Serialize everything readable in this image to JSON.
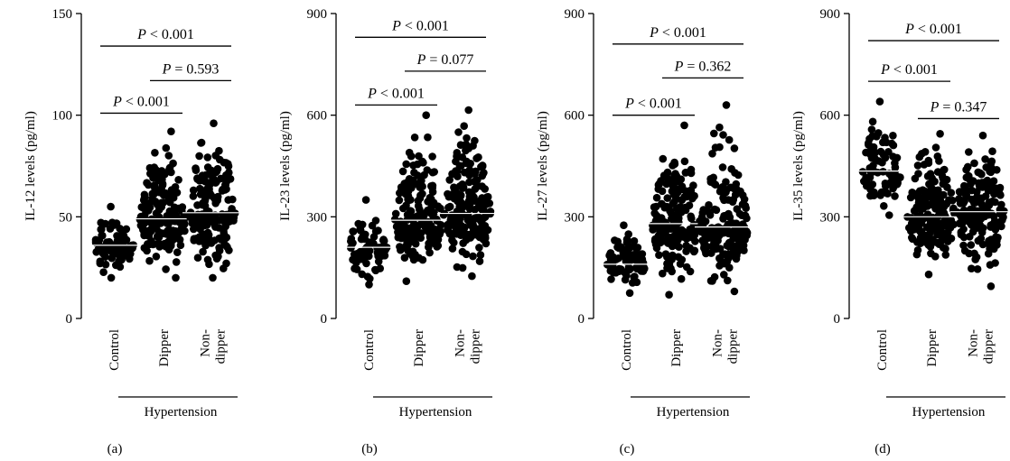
{
  "figure": {
    "group_label": "Hypertension",
    "panels": [
      "(a)",
      "(b)",
      "(c)",
      "(d)"
    ]
  },
  "chart_data": [
    {
      "type": "scatter",
      "panel_label": "(a)",
      "ylabel": "IL-12 levels (pg/ml)",
      "ylim": [
        0,
        150
      ],
      "yticks": [
        "0",
        "50",
        "100",
        "150"
      ],
      "categories": [
        "Control",
        "Dipper",
        "Non-dipper"
      ],
      "category_lines": [
        [
          "Control"
        ],
        [
          "Dipper"
        ],
        [
          "Non-",
          "dipper"
        ]
      ],
      "group_label": "Hypertension",
      "series": [
        {
          "category": "Control",
          "mean": 36,
          "min": 20,
          "max": 55,
          "n": 80
        },
        {
          "category": "Dipper",
          "mean": 49,
          "min": 20,
          "max": 92,
          "n": 180
        },
        {
          "category": "Non-dipper",
          "mean": 52,
          "min": 20,
          "max": 96,
          "n": 180
        }
      ],
      "comparisons": [
        {
          "from": "Control",
          "to": "Non-dipper",
          "prefix": "P",
          "text": " < 0.001",
          "y": 134
        },
        {
          "from": "Dipper",
          "to": "Non-dipper",
          "prefix": "P",
          "text": " = 0.593",
          "y": 117
        },
        {
          "from": "Control",
          "to": "Dipper",
          "prefix": "P",
          "text": " < 0.001",
          "y": 101
        }
      ]
    },
    {
      "type": "scatter",
      "panel_label": "(b)",
      "ylabel": "IL-23 levels (pg/ml)",
      "ylim": [
        0,
        900
      ],
      "yticks": [
        "0",
        "300",
        "600",
        "900"
      ],
      "categories": [
        "Control",
        "Dipper",
        "Non-dipper"
      ],
      "category_lines": [
        [
          "Control"
        ],
        [
          "Dipper"
        ],
        [
          "Non-",
          "dipper"
        ]
      ],
      "group_label": "Hypertension",
      "series": [
        {
          "category": "Control",
          "mean": 210,
          "min": 100,
          "max": 350,
          "n": 80
        },
        {
          "category": "Dipper",
          "mean": 290,
          "min": 110,
          "max": 600,
          "n": 180
        },
        {
          "category": "Non-dipper",
          "mean": 310,
          "min": 125,
          "max": 615,
          "n": 180
        }
      ],
      "comparisons": [
        {
          "from": "Control",
          "to": "Non-dipper",
          "prefix": "P",
          "text": " < 0.001",
          "y": 830
        },
        {
          "from": "Dipper",
          "to": "Non-dipper",
          "prefix": "P",
          "text": " = 0.077",
          "y": 730
        },
        {
          "from": "Control",
          "to": "Dipper",
          "prefix": "P",
          "text": " < 0.001",
          "y": 630
        }
      ]
    },
    {
      "type": "scatter",
      "panel_label": "(c)",
      "ylabel": "IL-27 levels (pg/ml)",
      "ylim": [
        0,
        900
      ],
      "yticks": [
        "0",
        "300",
        "600",
        "900"
      ],
      "categories": [
        "Control",
        "Dipper",
        "Non-dipper"
      ],
      "category_lines": [
        [
          "Control"
        ],
        [
          "Dipper"
        ],
        [
          "Non-",
          "dipper"
        ]
      ],
      "group_label": "Hypertension",
      "series": [
        {
          "category": "Control",
          "mean": 160,
          "min": 75,
          "max": 275,
          "n": 80
        },
        {
          "category": "Dipper",
          "mean": 280,
          "min": 70,
          "max": 570,
          "n": 180
        },
        {
          "category": "Non-dipper",
          "mean": 270,
          "min": 80,
          "max": 630,
          "n": 180
        }
      ],
      "comparisons": [
        {
          "from": "Control",
          "to": "Non-dipper",
          "prefix": "P",
          "text": " < 0.001",
          "y": 810
        },
        {
          "from": "Dipper",
          "to": "Non-dipper",
          "prefix": "P",
          "text": " = 0.362",
          "y": 710
        },
        {
          "from": "Control",
          "to": "Dipper",
          "prefix": "P",
          "text": " < 0.001",
          "y": 600
        }
      ]
    },
    {
      "type": "scatter",
      "panel_label": "(d)",
      "ylabel": "IL-35 levels (pg/ml)",
      "ylim": [
        0,
        900
      ],
      "yticks": [
        "0",
        "300",
        "600",
        "900"
      ],
      "categories": [
        "Control",
        "Dipper",
        "Non-dipper"
      ],
      "category_lines": [
        [
          "Control"
        ],
        [
          "Dipper"
        ],
        [
          "Non-",
          "dipper"
        ]
      ],
      "group_label": "Hypertension",
      "series": [
        {
          "category": "Control",
          "mean": 435,
          "min": 305,
          "max": 640,
          "n": 80
        },
        {
          "category": "Dipper",
          "mean": 300,
          "min": 130,
          "max": 545,
          "n": 180
        },
        {
          "category": "Non-dipper",
          "mean": 315,
          "min": 95,
          "max": 540,
          "n": 180
        }
      ],
      "comparisons": [
        {
          "from": "Control",
          "to": "Non-dipper",
          "prefix": "P",
          "text": " < 0.001",
          "y": 820
        },
        {
          "from": "Control",
          "to": "Dipper",
          "prefix": "P",
          "text": " < 0.001",
          "y": 700
        },
        {
          "from": "Dipper",
          "to": "Non-dipper",
          "prefix": "P",
          "text": " = 0.347",
          "y": 590
        }
      ]
    }
  ]
}
